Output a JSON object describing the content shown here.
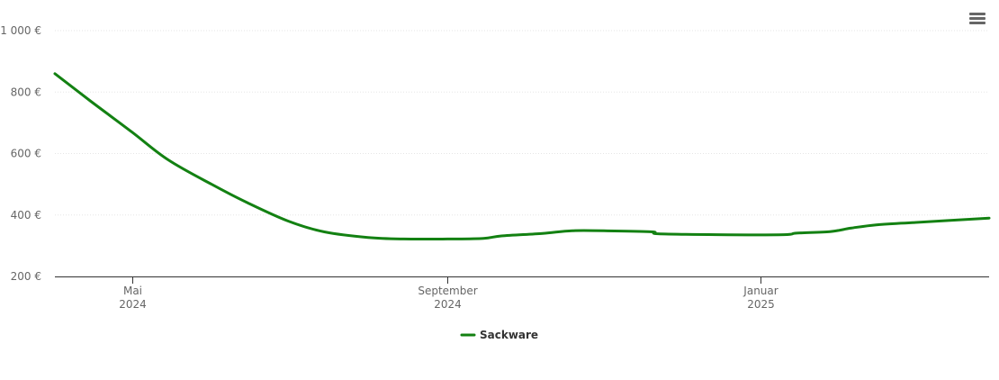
{
  "chart_data": {
    "type": "line",
    "title": "",
    "xlabel": "",
    "ylabel": "",
    "ylim": [
      200,
      1000
    ],
    "y_ticks": [
      200,
      400,
      600,
      800,
      1000
    ],
    "y_tick_labels": [
      "200 €",
      "400 €",
      "600 €",
      "800 €",
      "1 000 €"
    ],
    "x_range": [
      "2024-04-01",
      "2025-03-31"
    ],
    "x_ticks": [
      {
        "date": "2024-05-01",
        "line1": "Mai",
        "line2": "2024"
      },
      {
        "date": "2024-09-01",
        "line1": "September",
        "line2": "2024"
      },
      {
        "date": "2025-01-01",
        "line1": "Januar",
        "line2": "2025"
      }
    ],
    "grid": true,
    "legend_position": "bottom-center",
    "series": [
      {
        "name": "Sackware",
        "color": "#138112",
        "points": [
          {
            "date": "2024-04-01",
            "value": 860
          },
          {
            "date": "2024-04-15",
            "value": 770
          },
          {
            "date": "2024-05-01",
            "value": 670
          },
          {
            "date": "2024-05-15",
            "value": 580
          },
          {
            "date": "2024-06-01",
            "value": 500
          },
          {
            "date": "2024-06-15",
            "value": 440
          },
          {
            "date": "2024-07-01",
            "value": 380
          },
          {
            "date": "2024-07-15",
            "value": 345
          },
          {
            "date": "2024-08-01",
            "value": 327
          },
          {
            "date": "2024-08-15",
            "value": 322
          },
          {
            "date": "2024-09-01",
            "value": 322
          },
          {
            "date": "2024-09-15",
            "value": 324
          },
          {
            "date": "2024-09-22",
            "value": 332
          },
          {
            "date": "2024-10-08",
            "value": 340
          },
          {
            "date": "2024-10-20",
            "value": 349
          },
          {
            "date": "2024-11-05",
            "value": 348
          },
          {
            "date": "2024-11-20",
            "value": 345
          },
          {
            "date": "2024-11-22",
            "value": 339
          },
          {
            "date": "2024-12-15",
            "value": 336
          },
          {
            "date": "2025-01-10",
            "value": 336
          },
          {
            "date": "2025-01-15",
            "value": 341
          },
          {
            "date": "2025-01-28",
            "value": 346
          },
          {
            "date": "2025-02-05",
            "value": 357
          },
          {
            "date": "2025-02-15",
            "value": 368
          },
          {
            "date": "2025-03-01",
            "value": 375
          },
          {
            "date": "2025-03-31",
            "value": 390
          }
        ]
      }
    ]
  },
  "menu_icon": "hamburger-menu-icon"
}
